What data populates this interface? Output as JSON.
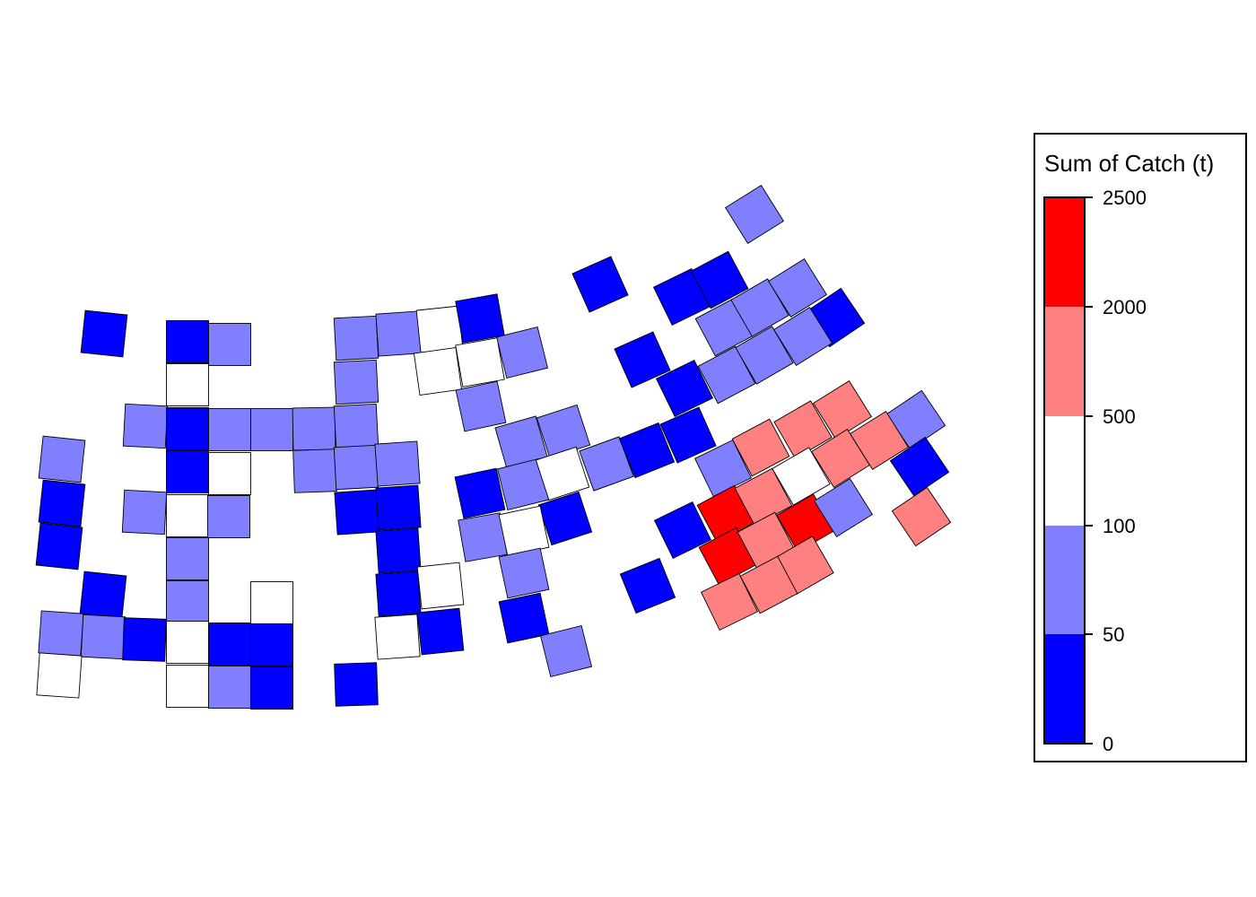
{
  "legend": {
    "title": "Sum of Catch (t)",
    "breaks": [
      "0",
      "50",
      "100",
      "500",
      "2000",
      "2500"
    ],
    "classes": [
      {
        "range": "0–50",
        "color": "#0000ff"
      },
      {
        "range": "50–100",
        "color": "#8080ff"
      },
      {
        "range": "100–500",
        "color": "#ffffff"
      },
      {
        "range": "500–2000",
        "color": "#ff8080"
      },
      {
        "range": "2000–2500",
        "color": "#ff0000"
      }
    ]
  }
}
